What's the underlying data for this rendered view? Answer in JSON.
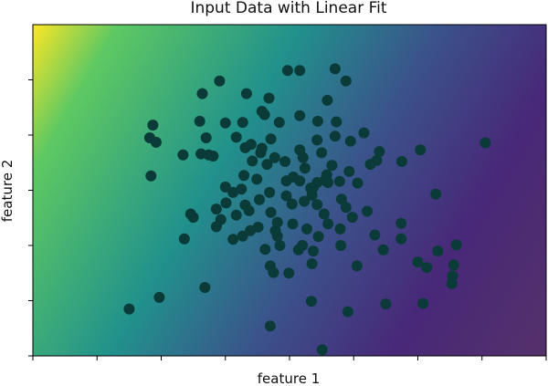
{
  "chart_data": {
    "type": "scatter",
    "title": "Input Data with Linear Fit",
    "xlabel": "feature 1",
    "ylabel": "feature 2",
    "xlim": [
      -4,
      4
    ],
    "ylim": [
      -3,
      3
    ],
    "x_ticks": [
      -4,
      -3,
      -2,
      -1,
      0,
      1,
      2,
      3,
      4
    ],
    "y_ticks": [
      -3,
      -2,
      -1,
      0,
      1,
      2
    ],
    "tick_labels_shown": false,
    "grid": false,
    "background": {
      "kind": "heatmap",
      "colormap": [
        "#fde725",
        "#5ec962",
        "#21918c",
        "#3b528b",
        "#482878",
        "#55316a"
      ],
      "fit_weights": {
        "w1": -1.0,
        "w2": 0.5
      },
      "value_range": [
        -4.0,
        4.0
      ]
    },
    "point_color": "#0a3b38",
    "points": [
      [
        -2.5,
        -2.15
      ],
      [
        -2.03,
        -1.94
      ],
      [
        -1.32,
        -1.76
      ],
      [
        -1.64,
        -0.88
      ],
      [
        -1.54,
        -0.43
      ],
      [
        -1.5,
        -0.49
      ],
      [
        -1.14,
        -0.34
      ],
      [
        -2.16,
        0.26
      ],
      [
        -2.13,
        1.18
      ],
      [
        -2.18,
        0.95
      ],
      [
        -2.08,
        0.87
      ],
      [
        -1.66,
        0.64
      ],
      [
        -1.38,
        0.66
      ],
      [
        -1.26,
        0.64
      ],
      [
        -1.19,
        0.62
      ],
      [
        -1.3,
        0.95
      ],
      [
        -1.4,
        1.25
      ],
      [
        -1.0,
        1.22
      ],
      [
        -0.73,
        1.23
      ],
      [
        -1.36,
        1.75
      ],
      [
        -1.09,
        1.98
      ],
      [
        -0.67,
        1.75
      ],
      [
        -0.32,
        1.67
      ],
      [
        -0.03,
        2.17
      ],
      [
        0.16,
        2.17
      ],
      [
        0.71,
        2.2
      ],
      [
        0.59,
        1.63
      ],
      [
        0.88,
        1.98
      ],
      [
        0.73,
        1.24
      ],
      [
        0.44,
        1.25
      ],
      [
        0.16,
        1.35
      ],
      [
        -0.16,
        1.23
      ],
      [
        -0.43,
        1.43
      ],
      [
        -0.39,
        1.37
      ],
      [
        0.43,
        0.91
      ],
      [
        0.71,
        0.98
      ],
      [
        0.95,
        0.89
      ],
      [
        1.16,
        1.04
      ],
      [
        1.4,
        0.7
      ],
      [
        1.36,
        0.54
      ],
      [
        1.26,
        0.47
      ],
      [
        2.04,
        0.73
      ],
      [
        3.05,
        0.86
      ],
      [
        0.66,
        0.45
      ],
      [
        0.58,
        0.28
      ],
      [
        0.55,
        0.18
      ],
      [
        0.33,
        0.04
      ],
      [
        0.93,
        0.34
      ],
      [
        1.06,
        0.13
      ],
      [
        0.81,
        -0.16
      ],
      [
        0.88,
        -0.31
      ],
      [
        0.5,
        0.68
      ],
      [
        0.21,
        0.59
      ],
      [
        0.16,
        0.73
      ],
      [
        -0.58,
        0.53
      ],
      [
        -0.45,
        0.68
      ],
      [
        -0.23,
        0.59
      ],
      [
        -0.29,
        0.93
      ],
      [
        -0.69,
        0.77
      ],
      [
        -0.83,
        0.96
      ],
      [
        -0.6,
        0.83
      ],
      [
        -0.35,
        0.47
      ],
      [
        -0.07,
        0.52
      ],
      [
        0.24,
        0.4
      ],
      [
        0.16,
        0.17
      ],
      [
        -0.05,
        0.17
      ],
      [
        0.43,
        0.14
      ],
      [
        0.06,
        0.24
      ],
      [
        0.37,
        0.05
      ],
      [
        0.6,
        0.14
      ],
      [
        0.35,
        -0.09
      ],
      [
        0.43,
        -0.26
      ],
      [
        0.23,
        -0.2
      ],
      [
        -0.31,
        -0.04
      ],
      [
        -0.75,
        0.02
      ],
      [
        -0.88,
        -0.04
      ],
      [
        -0.99,
        -0.23
      ],
      [
        -1.0,
        0.06
      ],
      [
        -0.71,
        0.27
      ],
      [
        -0.69,
        -0.27
      ],
      [
        -0.47,
        -0.17
      ],
      [
        -0.05,
        -0.1
      ],
      [
        0.04,
        -0.25
      ],
      [
        0.54,
        -0.43
      ],
      [
        0.6,
        -0.61
      ],
      [
        0.79,
        -0.7
      ],
      [
        0.98,
        -0.49
      ],
      [
        1.21,
        -0.38
      ],
      [
        1.74,
        -0.6
      ],
      [
        1.74,
        -0.88
      ],
      [
        1.33,
        -0.81
      ],
      [
        1.46,
        -1.08
      ],
      [
        2.31,
        -1.1
      ],
      [
        2.0,
        -1.3
      ],
      [
        2.14,
        -1.4
      ],
      [
        2.56,
        -1.35
      ],
      [
        2.6,
        -0.99
      ],
      [
        2.53,
        -1.69
      ],
      [
        2.54,
        -1.55
      ],
      [
        1.05,
        -1.37
      ],
      [
        0.35,
        -1.33
      ],
      [
        0.37,
        -1.1
      ],
      [
        0.2,
        -1.0
      ],
      [
        -0.15,
        -1.0
      ],
      [
        -0.19,
        -0.83
      ],
      [
        -0.38,
        -1.07
      ],
      [
        -0.3,
        -1.37
      ],
      [
        -0.25,
        -1.49
      ],
      [
        -0.01,
        -1.5
      ],
      [
        0.14,
        -1.08
      ],
      [
        0.05,
        -0.61
      ],
      [
        -0.19,
        -0.58
      ],
      [
        -0.49,
        -0.67
      ],
      [
        -0.73,
        -0.83
      ],
      [
        -0.88,
        -0.89
      ],
      [
        -0.83,
        -0.45
      ],
      [
        -0.63,
        -0.37
      ],
      [
        -1.07,
        -0.53
      ],
      [
        -1.14,
        -0.66
      ],
      [
        -0.61,
        -0.73
      ],
      [
        -0.22,
        -0.73
      ],
      [
        0.27,
        -0.7
      ],
      [
        0.45,
        -0.84
      ],
      [
        0.8,
        -1.0
      ],
      [
        -0.3,
        -2.46
      ],
      [
        0.34,
        -2.01
      ],
      [
        0.91,
        -2.2
      ],
      [
        1.5,
        -2.06
      ],
      [
        2.08,
        -2.05
      ],
      [
        0.51,
        -2.89
      ],
      [
        1.75,
        0.52
      ],
      [
        2.28,
        -0.07
      ],
      [
        0.78,
        0.16
      ],
      [
        -0.43,
        0.76
      ],
      [
        -0.51,
        0.2
      ],
      [
        -0.29,
        -0.4
      ]
    ]
  }
}
